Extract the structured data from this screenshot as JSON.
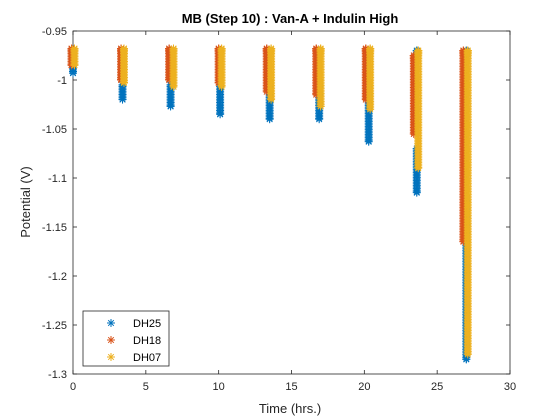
{
  "chart_data": {
    "type": "scatter",
    "title": "MB (Step 10) : Van-A + Indulin High",
    "xlabel": "Time (hrs.)",
    "ylabel": "Potential (V)",
    "xlim": [
      0,
      30
    ],
    "ylim": [
      -1.3,
      -0.95
    ],
    "xticks": [
      "0",
      "5",
      "10",
      "15",
      "20",
      "25",
      "30"
    ],
    "yticks": [
      "-0.95",
      "-1",
      "-1.05",
      "-1.1",
      "-1.15",
      "-1.2",
      "-1.25",
      "-1.3"
    ],
    "grid": false,
    "legend_position": "bottom-left",
    "marker": "asterisk",
    "series": [
      {
        "name": "DH25",
        "color": "#0072BD",
        "clusters": [
          {
            "x": 0.0,
            "y": [
              -0.993,
              -0.975,
              -0.97
            ]
          },
          {
            "x": 3.4,
            "y": [
              -1.02,
              -1.005,
              -0.97
            ]
          },
          {
            "x": 6.7,
            "y": [
              -1.027,
              -1.005,
              -0.97
            ]
          },
          {
            "x": 10.1,
            "y": [
              -1.035,
              -1.005,
              -0.97
            ]
          },
          {
            "x": 13.5,
            "y": [
              -1.04,
              -1.0,
              -0.97
            ]
          },
          {
            "x": 16.9,
            "y": [
              -1.04,
              -1.0,
              -0.97
            ]
          },
          {
            "x": 20.3,
            "y": [
              -1.063,
              -1.0,
              -0.97
            ]
          },
          {
            "x": 23.6,
            "y": [
              -1.115,
              -1.07,
              -0.97
            ]
          },
          {
            "x": 27.0,
            "y": [
              -1.285,
              -1.12,
              -0.97
            ]
          }
        ]
      },
      {
        "name": "DH18",
        "color": "#D95319",
        "clusters": [
          {
            "x": -0.1,
            "y": [
              -0.985,
              -0.968
            ]
          },
          {
            "x": 3.3,
            "y": [
              -1.0,
              -0.968
            ]
          },
          {
            "x": 6.6,
            "y": [
              -1.0,
              -0.968
            ]
          },
          {
            "x": 10.0,
            "y": [
              -1.003,
              -0.968
            ]
          },
          {
            "x": 13.3,
            "y": [
              -1.012,
              -0.968
            ]
          },
          {
            "x": 16.7,
            "y": [
              -1.015,
              -0.968
            ]
          },
          {
            "x": 20.1,
            "y": [
              -1.02,
              -0.968
            ]
          },
          {
            "x": 23.4,
            "y": [
              -1.055,
              -0.975
            ]
          },
          {
            "x": 26.8,
            "y": [
              -1.165,
              -0.97
            ]
          }
        ]
      },
      {
        "name": "DH07",
        "color": "#EDB120",
        "clusters": [
          {
            "x": 0.1,
            "y": [
              -0.985,
              -0.968
            ]
          },
          {
            "x": 3.5,
            "y": [
              -1.003,
              -0.968
            ]
          },
          {
            "x": 6.9,
            "y": [
              -1.007,
              -0.968
            ]
          },
          {
            "x": 10.2,
            "y": [
              -1.007,
              -0.968
            ]
          },
          {
            "x": 13.6,
            "y": [
              -1.02,
              -0.968
            ]
          },
          {
            "x": 17.0,
            "y": [
              -1.027,
              -0.968
            ]
          },
          {
            "x": 20.4,
            "y": [
              -1.03,
              -0.968
            ]
          },
          {
            "x": 23.7,
            "y": [
              -1.09,
              -0.97
            ]
          },
          {
            "x": 27.1,
            "y": [
              -1.28,
              -0.97
            ]
          }
        ]
      }
    ]
  }
}
